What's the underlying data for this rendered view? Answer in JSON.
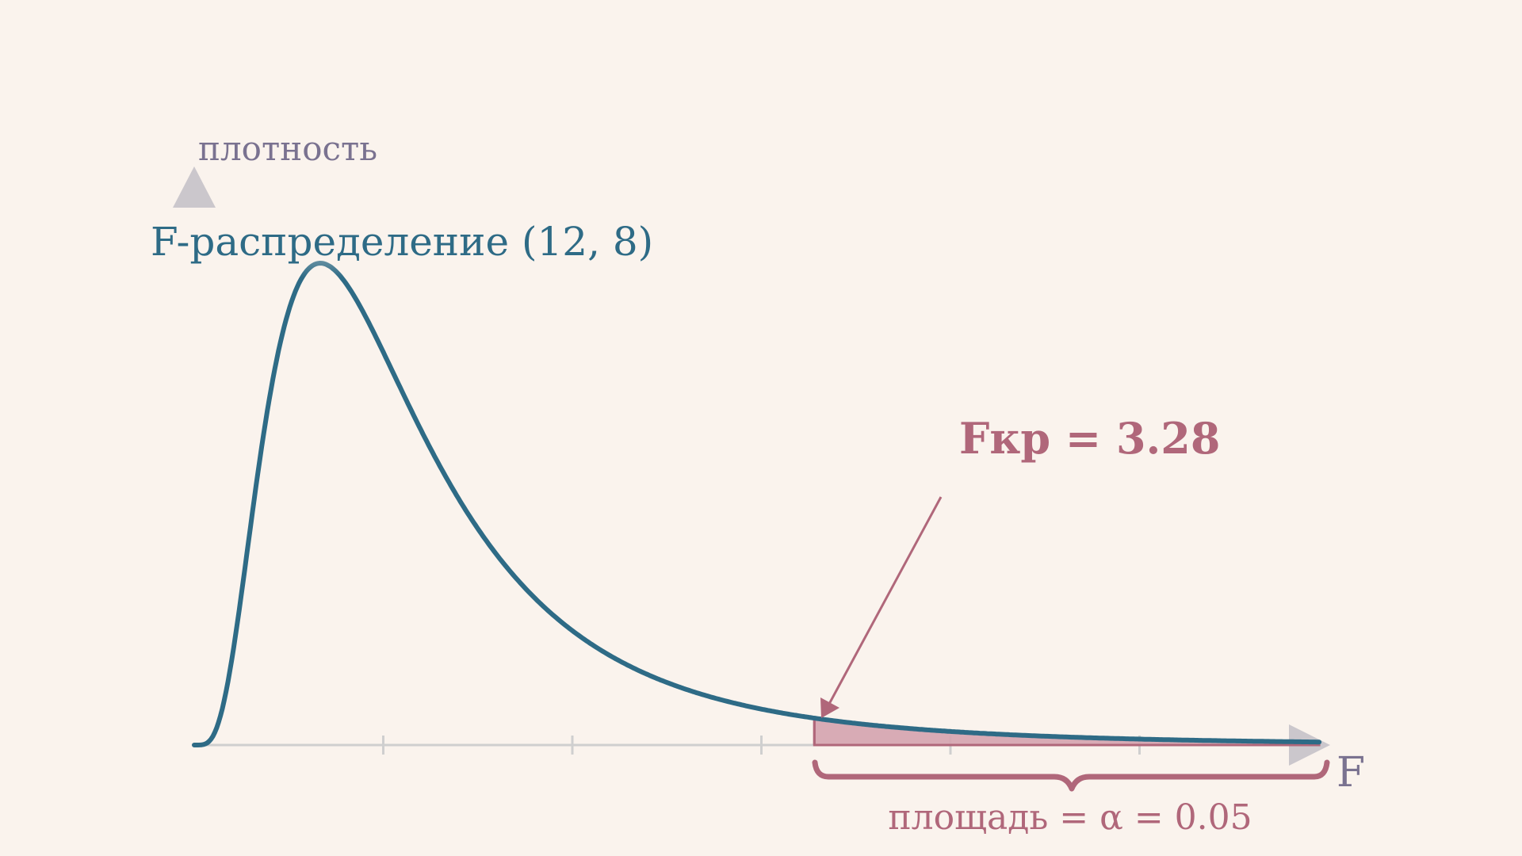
{
  "labels": {
    "y_axis": "плотность",
    "x_axis": "F",
    "curve": "F-распределение (12, 8)",
    "critical": "Fкр = 3.28",
    "area": "площадь = α = 0.05"
  },
  "colors": {
    "background": "#faf3ed",
    "curve": "#2e6b86",
    "critical": "#b0677a",
    "tail_fill": "#d4a3ae",
    "axis": "#cfcfcf",
    "axis_arrow": "#cbc7cc",
    "axis_label": "#7a7290"
  },
  "chart_data": {
    "type": "line",
    "distribution": "F",
    "df": [
      12,
      8
    ],
    "critical_value": 3.28,
    "alpha": 0.05,
    "xlim": [
      0,
      6
    ],
    "x_ticks": [
      1,
      2,
      3,
      4,
      5
    ],
    "tick_labels_shown": false
  }
}
